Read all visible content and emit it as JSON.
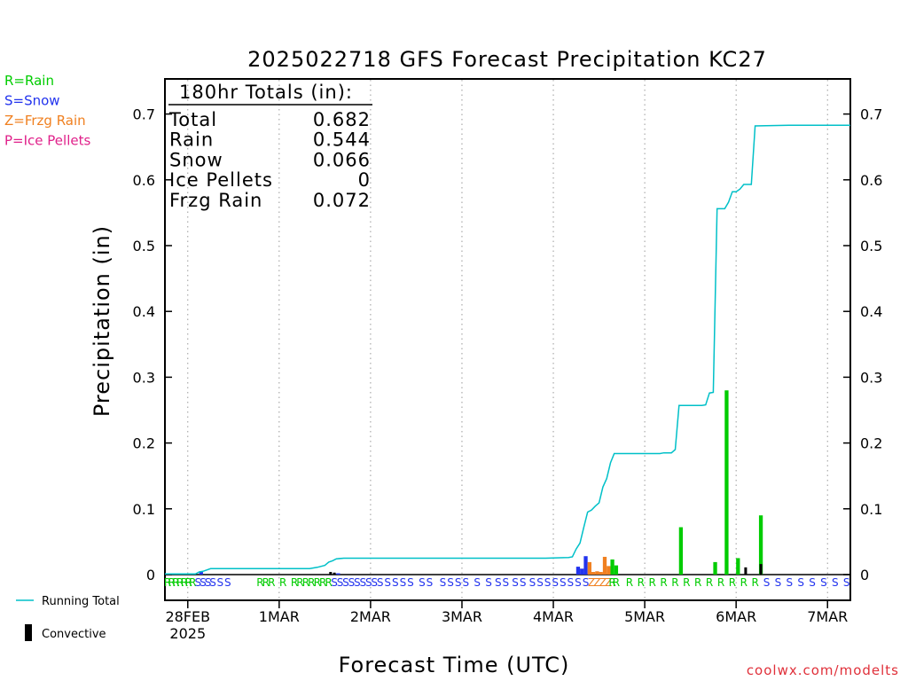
{
  "chart_data": {
    "type": "bar",
    "title": "2025022718 GFS Forecast Precipitation KC27",
    "xlabel": "Forecast Time (UTC)",
    "ylabel": "Precipitation (in)",
    "ylim": [
      -0.02,
      0.75
    ],
    "y_ticks": [
      0,
      0.1,
      0.2,
      0.3,
      0.4,
      0.5,
      0.6,
      0.7
    ],
    "y_tick_labels": [
      "0",
      "0.1",
      "0.2",
      "0.3",
      "0.4",
      "0.5",
      "0.6",
      "0.7"
    ],
    "xlim_forecast_hours": [
      0,
      180
    ],
    "x_ticks": [
      {
        "forecast_hour": 6,
        "label": "28FEB",
        "sublabel": "2025"
      },
      {
        "forecast_hour": 30,
        "label": "1MAR"
      },
      {
        "forecast_hour": 54,
        "label": "2MAR"
      },
      {
        "forecast_hour": 78,
        "label": "3MAR"
      },
      {
        "forecast_hour": 102,
        "label": "4MAR"
      },
      {
        "forecast_hour": 126,
        "label": "5MAR"
      },
      {
        "forecast_hour": 150,
        "label": "6MAR"
      },
      {
        "forecast_hour": 174,
        "label": "7MAR"
      }
    ],
    "grid": "vertical dotted at day boundaries",
    "colors": {
      "rain": "#00cc00",
      "snow": "#2233ee",
      "freezing_rain": "#f08020",
      "ice_pellets": "#e0208a",
      "running_total": "#00c0c8",
      "convective": "#000000"
    },
    "precip_type_legend": [
      {
        "code": "R",
        "label": "R=Rain",
        "color": "#00cc00"
      },
      {
        "code": "S",
        "label": "S=Snow",
        "color": "#2233ee"
      },
      {
        "code": "Z",
        "label": "Z=Frzg Rain",
        "color": "#f08020"
      },
      {
        "code": "P",
        "label": "P=Ice Pellets",
        "color": "#e0208a"
      }
    ],
    "totals": {
      "heading": "180hr Totals (in):",
      "rows": [
        {
          "label": "Total",
          "value": "0.682"
        },
        {
          "label": "Rain",
          "value": "0.544"
        },
        {
          "label": "Snow",
          "value": "0.066"
        },
        {
          "label": "Ice Pellets",
          "value": "0"
        },
        {
          "label": "Frzg Rain",
          "value": "0.072"
        }
      ]
    },
    "bars": [
      {
        "hour": 9.5,
        "value": 0.004,
        "type": "snow"
      },
      {
        "hour": 43.5,
        "value": 0.004,
        "type": "convective"
      },
      {
        "hour": 44.5,
        "value": 0.003,
        "type": "convective"
      },
      {
        "hour": 45.5,
        "value": 0.002,
        "type": "snow"
      },
      {
        "hour": 108.5,
        "value": 0.012,
        "type": "snow"
      },
      {
        "hour": 109.5,
        "value": 0.009,
        "type": "snow"
      },
      {
        "hour": 110.5,
        "value": 0.028,
        "type": "snow"
      },
      {
        "hour": 111.5,
        "value": 0.019,
        "type": "freezing_rain"
      },
      {
        "hour": 112.5,
        "value": 0.004,
        "type": "freezing_rain"
      },
      {
        "hour": 113.5,
        "value": 0.005,
        "type": "freezing_rain"
      },
      {
        "hour": 114.5,
        "value": 0.004,
        "type": "freezing_rain"
      },
      {
        "hour": 115.5,
        "value": 0.027,
        "type": "freezing_rain"
      },
      {
        "hour": 116.5,
        "value": 0.013,
        "type": "freezing_rain"
      },
      {
        "hour": 117.5,
        "value": 0.023,
        "type": "rain"
      },
      {
        "hour": 118.5,
        "value": 0.014,
        "type": "rain"
      },
      {
        "hour": 135.5,
        "value": 0.072,
        "type": "rain"
      },
      {
        "hour": 144.5,
        "value": 0.019,
        "type": "rain"
      },
      {
        "hour": 147.5,
        "value": 0.28,
        "type": "rain"
      },
      {
        "hour": 150.5,
        "value": 0.025,
        "type": "rain"
      },
      {
        "hour": 152.5,
        "value": 0.011,
        "type": "convective"
      },
      {
        "hour": 156.5,
        "value": 0.09,
        "type": "rain"
      },
      {
        "hour": 156.5,
        "value": 0.016,
        "type": "convective"
      }
    ],
    "running_total": [
      [
        0,
        0.001
      ],
      [
        8,
        0.001
      ],
      [
        9,
        0.004
      ],
      [
        10,
        0.005
      ],
      [
        12,
        0.009
      ],
      [
        20,
        0.009
      ],
      [
        30,
        0.009
      ],
      [
        38,
        0.009
      ],
      [
        40,
        0.011
      ],
      [
        42,
        0.014
      ],
      [
        43,
        0.019
      ],
      [
        44,
        0.021
      ],
      [
        45,
        0.024
      ],
      [
        47,
        0.025
      ],
      [
        60,
        0.025
      ],
      [
        80,
        0.025
      ],
      [
        100,
        0.025
      ],
      [
        106,
        0.026
      ],
      [
        107,
        0.027
      ],
      [
        108,
        0.039
      ],
      [
        109,
        0.048
      ],
      [
        110,
        0.072
      ],
      [
        111,
        0.095
      ],
      [
        112,
        0.098
      ],
      [
        113,
        0.104
      ],
      [
        114,
        0.109
      ],
      [
        115,
        0.133
      ],
      [
        116,
        0.146
      ],
      [
        117,
        0.17
      ],
      [
        118,
        0.184
      ],
      [
        130,
        0.184
      ],
      [
        131,
        0.185
      ],
      [
        132,
        0.185
      ],
      [
        133,
        0.185
      ],
      [
        134,
        0.19
      ],
      [
        135,
        0.257
      ],
      [
        141,
        0.257
      ],
      [
        142,
        0.258
      ],
      [
        143,
        0.276
      ],
      [
        144,
        0.277
      ],
      [
        145,
        0.556
      ],
      [
        147,
        0.556
      ],
      [
        148,
        0.566
      ],
      [
        149,
        0.582
      ],
      [
        150,
        0.582
      ],
      [
        151,
        0.586
      ],
      [
        152,
        0.593
      ],
      [
        154,
        0.593
      ],
      [
        155,
        0.682
      ],
      [
        165,
        0.683
      ],
      [
        180,
        0.683
      ]
    ],
    "ptype_row_1": [
      {
        "hour": 0.7,
        "code": "R"
      },
      {
        "hour": 1.8,
        "code": "R"
      },
      {
        "hour": 2.9,
        "code": "R"
      },
      {
        "hour": 4.0,
        "code": "R"
      },
      {
        "hour": 5.1,
        "code": "R"
      },
      {
        "hour": 6.2,
        "code": "R"
      },
      {
        "hour": 7.3,
        "code": "R"
      },
      {
        "hour": 8.7,
        "code": "S"
      },
      {
        "hour": 10.0,
        "code": "S"
      },
      {
        "hour": 11.3,
        "code": "S"
      },
      {
        "hour": 12.6,
        "code": "S"
      },
      {
        "hour": 14.5,
        "code": "S"
      },
      {
        "hour": 16.5,
        "code": "S"
      },
      {
        "hour": 25.0,
        "code": "R"
      },
      {
        "hour": 26.5,
        "code": "R"
      },
      {
        "hour": 28.0,
        "code": "R"
      },
      {
        "hour": 31.0,
        "code": "R"
      },
      {
        "hour": 34.0,
        "code": "R"
      },
      {
        "hour": 35.5,
        "code": "R"
      },
      {
        "hour": 37.0,
        "code": "R"
      },
      {
        "hour": 38.5,
        "code": "R"
      },
      {
        "hour": 40.0,
        "code": "R"
      },
      {
        "hour": 41.5,
        "code": "R"
      },
      {
        "hour": 43.0,
        "code": "R"
      },
      {
        "hour": 44.5,
        "code": "S"
      },
      {
        "hour": 46.0,
        "code": "S"
      },
      {
        "hour": 47.5,
        "code": "S"
      },
      {
        "hour": 49.0,
        "code": "S"
      },
      {
        "hour": 50.5,
        "code": "S"
      },
      {
        "hour": 52.0,
        "code": "S"
      },
      {
        "hour": 53.5,
        "code": "S"
      },
      {
        "hour": 55.0,
        "code": "S"
      },
      {
        "hour": 56.5,
        "code": "S"
      },
      {
        "hour": 58.5,
        "code": "S"
      },
      {
        "hour": 60.5,
        "code": "S"
      },
      {
        "hour": 62.5,
        "code": "S"
      },
      {
        "hour": 64.5,
        "code": "S"
      },
      {
        "hour": 67.5,
        "code": "S"
      },
      {
        "hour": 69.5,
        "code": "S"
      },
      {
        "hour": 73.0,
        "code": "S"
      },
      {
        "hour": 75.0,
        "code": "S"
      },
      {
        "hour": 77.0,
        "code": "S"
      },
      {
        "hour": 79.0,
        "code": "S"
      },
      {
        "hour": 82.0,
        "code": "S"
      },
      {
        "hour": 85.0,
        "code": "S"
      },
      {
        "hour": 87.5,
        "code": "S"
      },
      {
        "hour": 89.5,
        "code": "S"
      },
      {
        "hour": 92.0,
        "code": "S"
      },
      {
        "hour": 94.0,
        "code": "S"
      },
      {
        "hour": 96.5,
        "code": "S"
      },
      {
        "hour": 98.5,
        "code": "S"
      },
      {
        "hour": 100.5,
        "code": "S"
      },
      {
        "hour": 102.5,
        "code": "S"
      },
      {
        "hour": 104.5,
        "code": "S"
      },
      {
        "hour": 106.5,
        "code": "S"
      },
      {
        "hour": 108.5,
        "code": "S"
      },
      {
        "hour": 110.5,
        "code": "S"
      },
      {
        "hour": 112.0,
        "code": "Z"
      },
      {
        "hour": 113.5,
        "code": "Z"
      },
      {
        "hour": 115.0,
        "code": "Z"
      },
      {
        "hour": 116.5,
        "code": "Z"
      },
      {
        "hour": 117.5,
        "code": "R"
      },
      {
        "hour": 118.5,
        "code": "R"
      },
      {
        "hour": 122.0,
        "code": "R"
      },
      {
        "hour": 125.0,
        "code": "R"
      },
      {
        "hour": 128.0,
        "code": "R"
      },
      {
        "hour": 131.0,
        "code": "R"
      },
      {
        "hour": 134.0,
        "code": "R"
      },
      {
        "hour": 137.0,
        "code": "R"
      },
      {
        "hour": 140.0,
        "code": "R"
      },
      {
        "hour": 143.0,
        "code": "R"
      },
      {
        "hour": 146.0,
        "code": "R"
      },
      {
        "hour": 149.0,
        "code": "R"
      },
      {
        "hour": 152.0,
        "code": "R"
      },
      {
        "hour": 155.0,
        "code": "R"
      },
      {
        "hour": 158.0,
        "code": "S"
      },
      {
        "hour": 161.0,
        "code": "S"
      },
      {
        "hour": 164.0,
        "code": "S"
      },
      {
        "hour": 167.0,
        "code": "S"
      },
      {
        "hour": 170.0,
        "code": "S"
      },
      {
        "hour": 173.0,
        "code": "S"
      },
      {
        "hour": 176.0,
        "code": "S"
      },
      {
        "hour": 179.0,
        "code": "S"
      }
    ],
    "bottom_legend": {
      "running_total": "Running Total",
      "convective": "Convective"
    },
    "credit": "coolwx.com/modelts"
  }
}
